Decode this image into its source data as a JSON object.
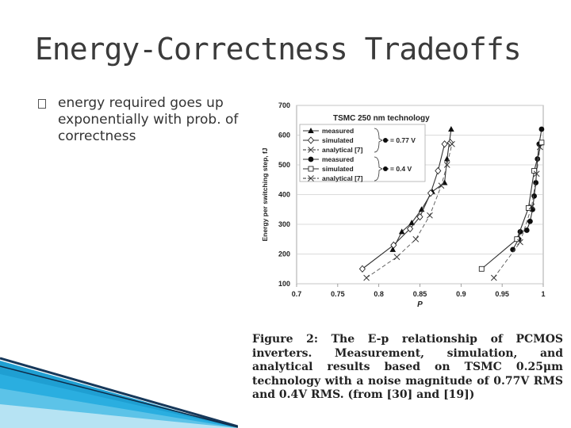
{
  "slide": {
    "title": "Energy-Correctness Tradeoffs",
    "bullet": "energy required goes up exponentially with prob. of correctness",
    "caption": "Figure 2: The E-p relationship of PCMOS inverters. Measurement, simulation, and analytical results based on TSMC 0.25μm technology with a noise magnitude of 0.77V RMS and 0.4V RMS. (from [30] and [19])"
  },
  "chart_data": {
    "type": "line",
    "title": "TSMC 250 nm technology",
    "xlabel": "P",
    "ylabel": "Energy per switching step, fJ",
    "xlim": [
      0.7,
      1.0
    ],
    "ylim": [
      100,
      700
    ],
    "xticks": [
      "0.7",
      "0.75",
      "0.8",
      "0.85",
      "0.9",
      "0.95",
      "1"
    ],
    "yticks": [
      "100",
      "200",
      "300",
      "400",
      "500",
      "600",
      "700"
    ],
    "grid": true,
    "legend": {
      "position": "top-left",
      "groups": [
        {
          "label": "= 0.77 V",
          "entries": [
            "measured",
            "simulated",
            "analytical [7]"
          ]
        },
        {
          "label": "= 0.4 V",
          "entries": [
            "measured",
            "simulated",
            "analytical [7]"
          ]
        }
      ]
    },
    "series": [
      {
        "name": "measured",
        "group": "0.77 V",
        "marker": "triangle",
        "line": "solid",
        "x": [
          0.817,
          0.828,
          0.84,
          0.852,
          0.865,
          0.88,
          0.883,
          0.888
        ],
        "y": [
          215,
          275,
          305,
          350,
          410,
          440,
          520,
          620
        ]
      },
      {
        "name": "simulated",
        "group": "0.77 V",
        "marker": "diamond",
        "line": "solid",
        "x": [
          0.78,
          0.818,
          0.838,
          0.85,
          0.863,
          0.872,
          0.88,
          0.887
        ],
        "y": [
          150,
          230,
          285,
          325,
          405,
          480,
          570,
          575
        ]
      },
      {
        "name": "analytical [7]",
        "group": "0.77 V",
        "marker": "x",
        "line": "dashed",
        "x": [
          0.785,
          0.822,
          0.845,
          0.862,
          0.876,
          0.883,
          0.889
        ],
        "y": [
          120,
          190,
          250,
          330,
          430,
          500,
          570
        ]
      },
      {
        "name": "measured",
        "group": "0.4 V",
        "marker": "circle",
        "line": "solid",
        "x": [
          0.963,
          0.97,
          0.972,
          0.98,
          0.984,
          0.987,
          0.989,
          0.991,
          0.993,
          0.995,
          0.998
        ],
        "y": [
          215,
          250,
          275,
          280,
          310,
          350,
          395,
          440,
          520,
          570,
          620
        ]
      },
      {
        "name": "simulated",
        "group": "0.4 V",
        "marker": "square",
        "line": "solid",
        "x": [
          0.925,
          0.968,
          0.982,
          0.989,
          0.998
        ],
        "y": [
          150,
          250,
          355,
          480,
          575
        ]
      },
      {
        "name": "analytical [7]",
        "group": "0.4 V",
        "marker": "x",
        "line": "dashed",
        "x": [
          0.94,
          0.972,
          0.986,
          0.992,
          0.996
        ],
        "y": [
          120,
          240,
          360,
          470,
          560
        ]
      }
    ]
  }
}
